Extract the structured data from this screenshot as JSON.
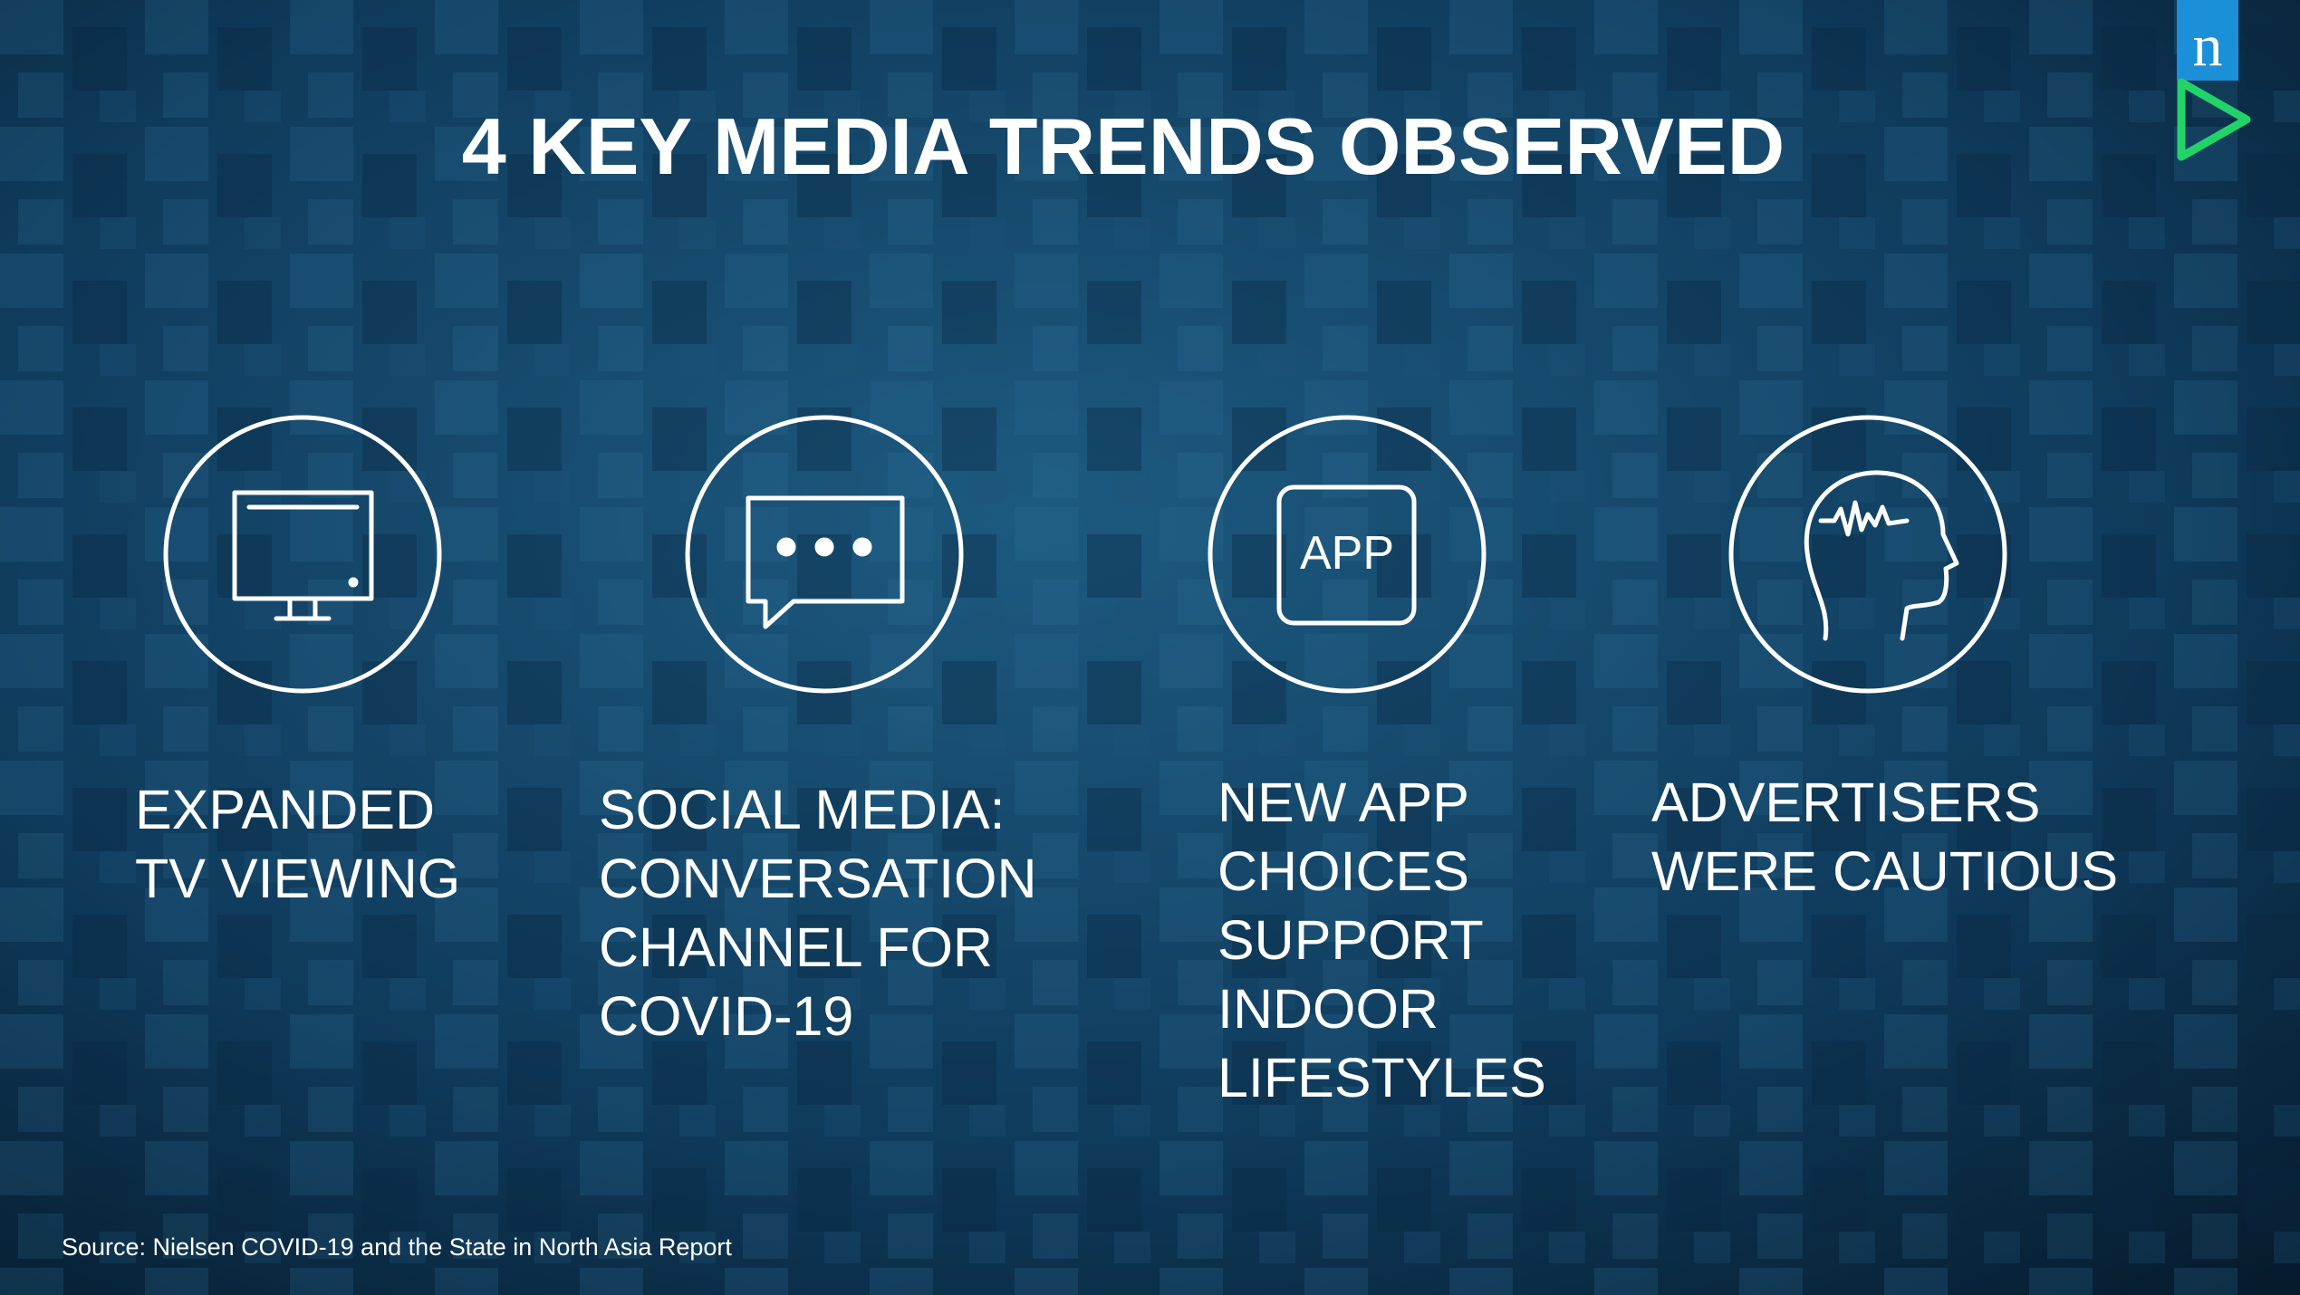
{
  "header": {
    "title": "4 KEY MEDIA TRENDS OBSERVED",
    "logo": "n"
  },
  "trends": [
    {
      "lines": [
        "EXPANDED",
        "TV VIEWING"
      ]
    },
    {
      "lines": [
        "SOCIAL MEDIA:",
        "CONVERSATION",
        "CHANNEL FOR",
        "COVID-19"
      ]
    },
    {
      "icon_text": "APP",
      "lines": [
        "NEW APP",
        "CHOICES",
        "SUPPORT",
        "INDOOR",
        "LIFESTYLES"
      ]
    },
    {
      "lines": [
        "ADVERTISERS",
        "WERE CAUTIOUS"
      ]
    }
  ],
  "footer": {
    "source": "Source: Nielsen COVID-19 and the State in North Asia Report"
  }
}
